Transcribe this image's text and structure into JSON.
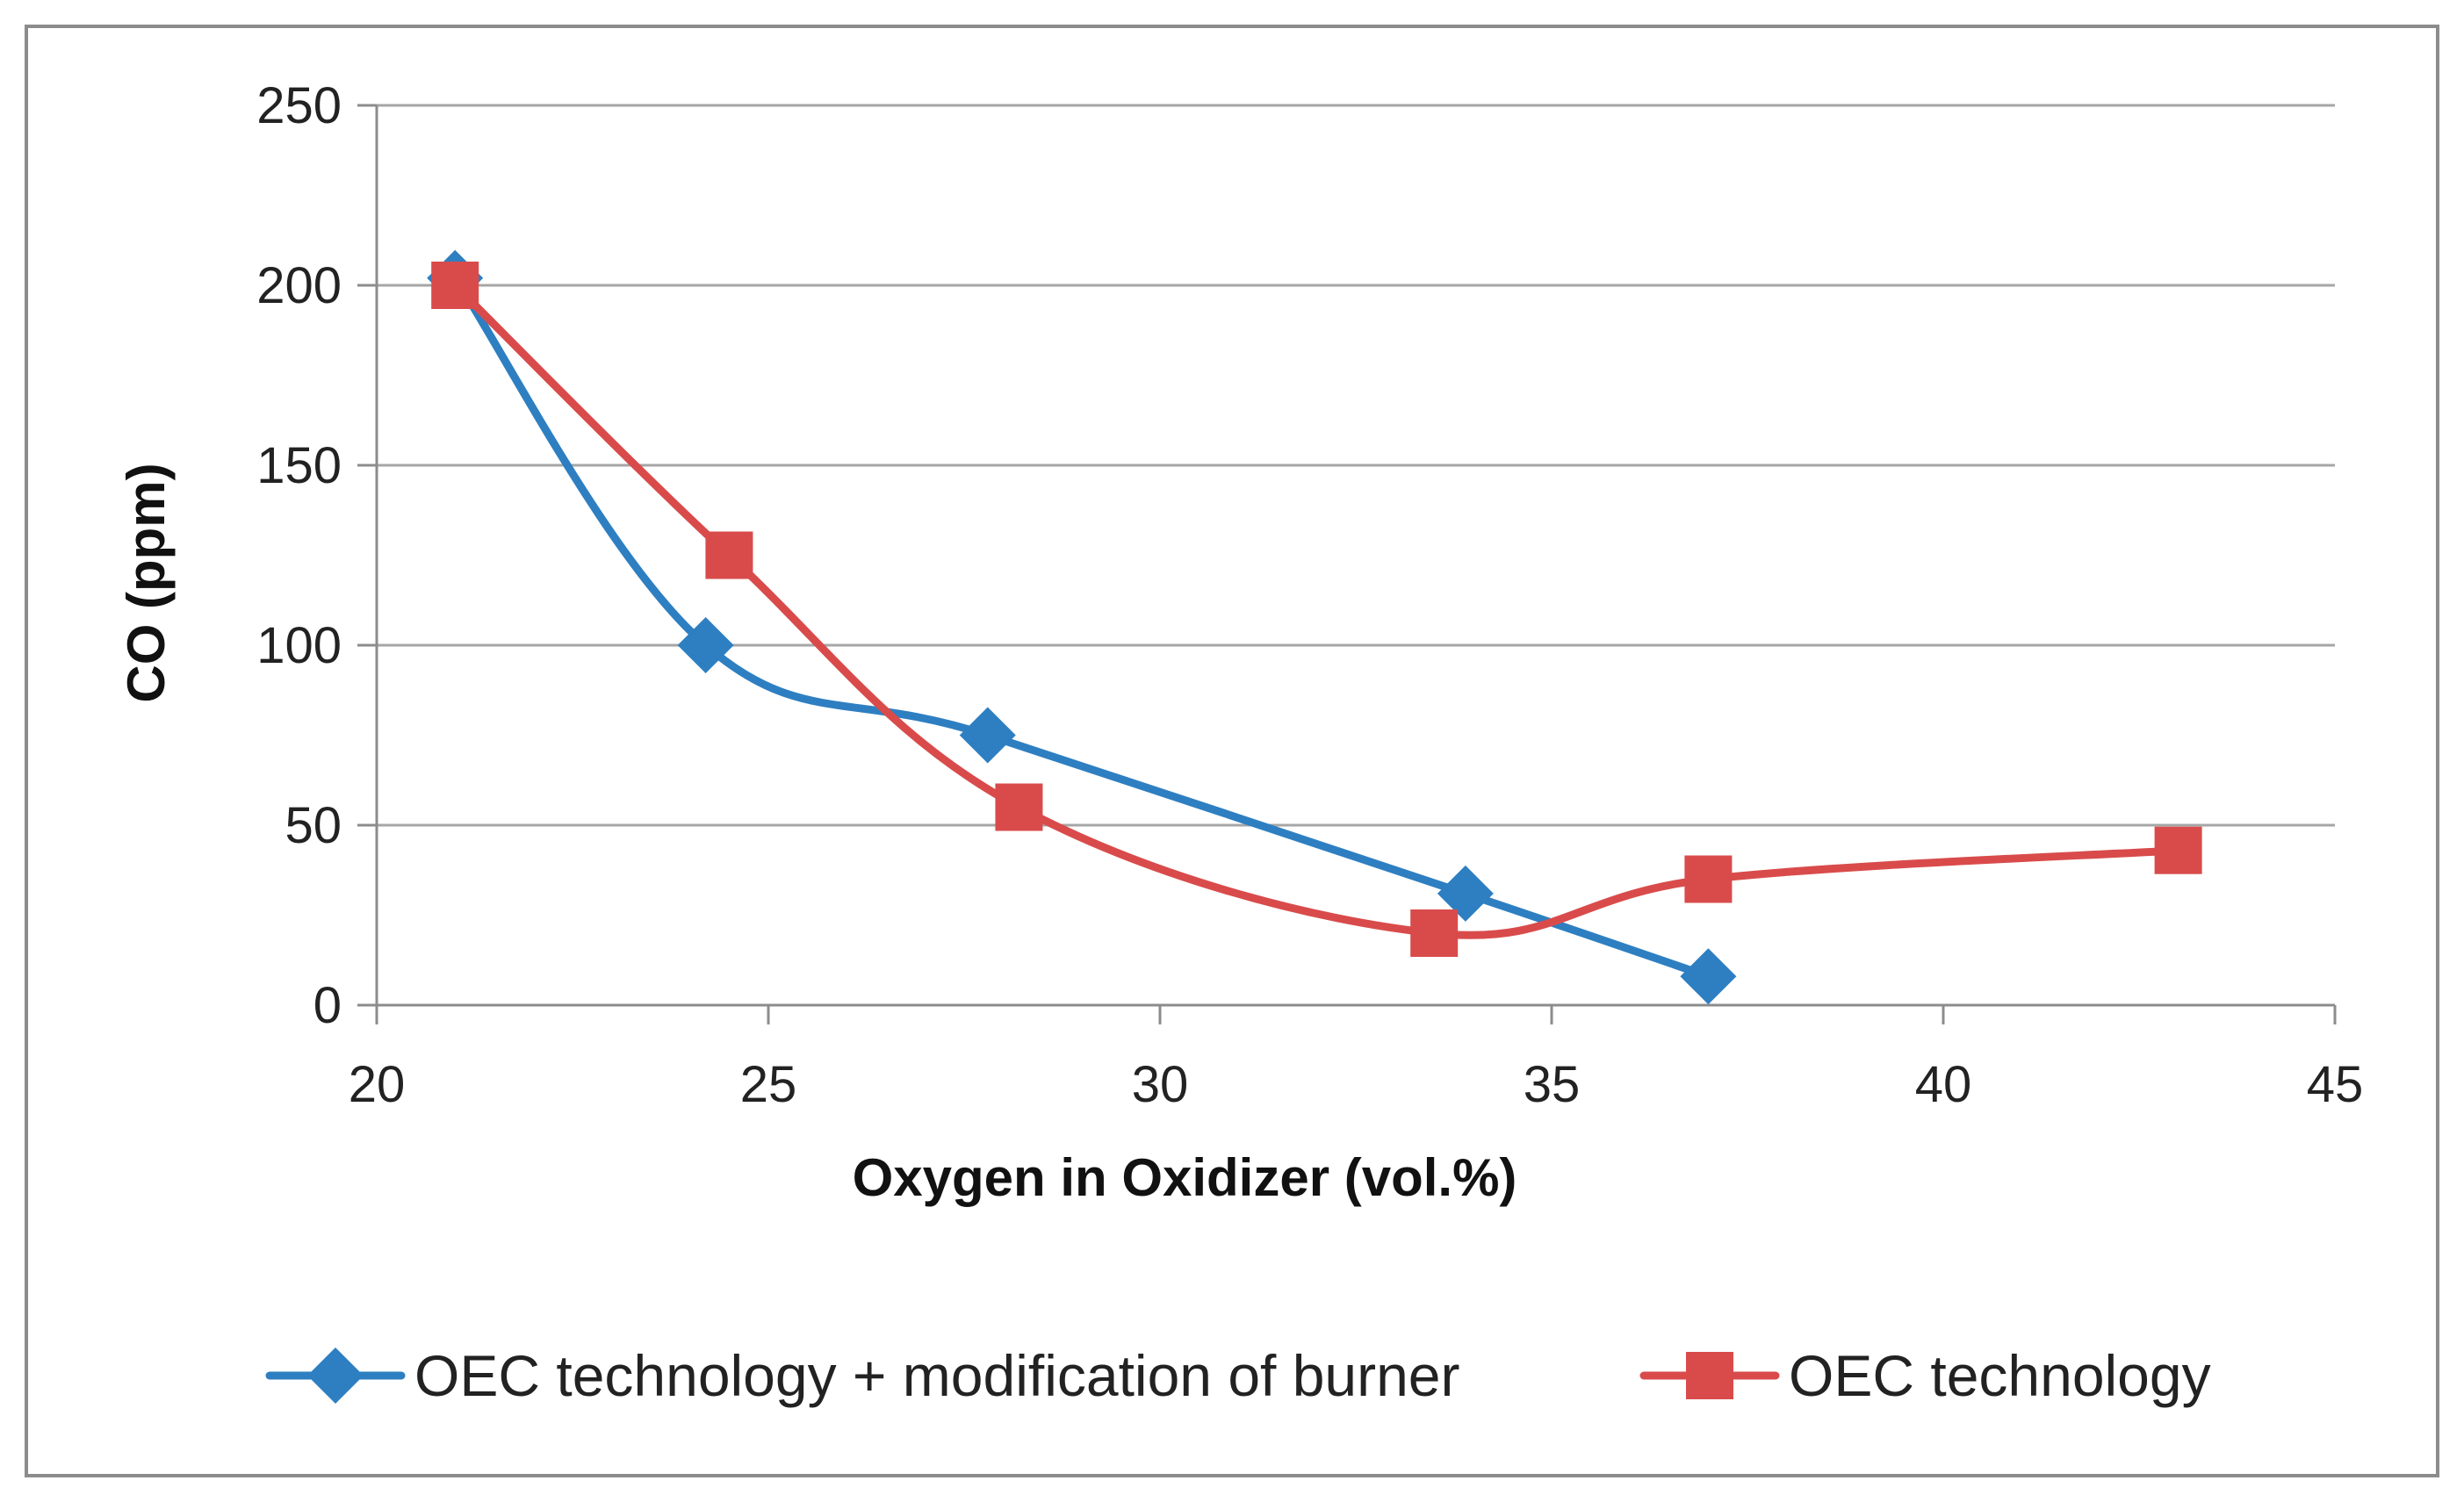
{
  "chart_data": {
    "type": "line",
    "title": "",
    "xlabel": "Oxygen  in Oxidizer (vol.%)",
    "ylabel": "CO (ppm)",
    "xlim": [
      20,
      45
    ],
    "ylim": [
      0,
      250
    ],
    "xticks": [
      20,
      25,
      30,
      35,
      40,
      45
    ],
    "yticks": [
      0,
      50,
      100,
      150,
      200,
      250
    ],
    "grid": "horizontal",
    "legend_position": "bottom",
    "series": [
      {
        "name": "OEC technology + modification of burner",
        "color": "#2e7fc1",
        "marker": "diamond",
        "smooth": true,
        "x": [
          21,
          24.2,
          27.8,
          33.9,
          37
        ],
        "y": [
          202,
          100,
          75,
          31,
          8
        ]
      },
      {
        "name": "OEC technology",
        "color": "#d94b4b",
        "marker": "square",
        "smooth": true,
        "x": [
          21,
          24.5,
          28.2,
          33.5,
          37,
          43
        ],
        "y": [
          200,
          125,
          55,
          20,
          35,
          43
        ]
      }
    ]
  }
}
